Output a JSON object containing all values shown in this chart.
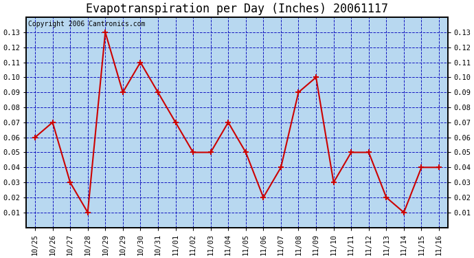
{
  "title": "Evapotranspiration per Day (Inches) 20061117",
  "copyright": "Copyright 2006 Cantronics.com",
  "x_labels": [
    "10/25",
    "10/26",
    "10/27",
    "10/28",
    "10/29",
    "10/29",
    "10/30",
    "10/31",
    "11/01",
    "11/02",
    "11/03",
    "11/04",
    "11/05",
    "11/06",
    "11/07",
    "11/08",
    "11/09",
    "11/10",
    "11/11",
    "11/12",
    "11/13",
    "11/14",
    "11/15",
    "11/16"
  ],
  "y_values": [
    0.06,
    0.07,
    0.03,
    0.01,
    0.13,
    0.09,
    0.11,
    0.09,
    0.07,
    0.05,
    0.05,
    0.07,
    0.05,
    0.02,
    0.04,
    0.09,
    0.1,
    0.03,
    0.05,
    0.05,
    0.02,
    0.01,
    0.04,
    0.04
  ],
  "ylim": [
    0.0,
    0.14
  ],
  "yticks": [
    0.01,
    0.02,
    0.03,
    0.04,
    0.05,
    0.06,
    0.07,
    0.08,
    0.09,
    0.1,
    0.11,
    0.12,
    0.13
  ],
  "line_color": "#cc0000",
  "marker": "+",
  "marker_size": 6,
  "marker_linewidth": 1.5,
  "bg_color": "#ffffff",
  "plot_bg": "#b8d8f0",
  "grid_color": "#0000bb",
  "title_fontsize": 12,
  "copyright_fontsize": 7,
  "tick_fontsize": 7.5,
  "linewidth": 1.5
}
